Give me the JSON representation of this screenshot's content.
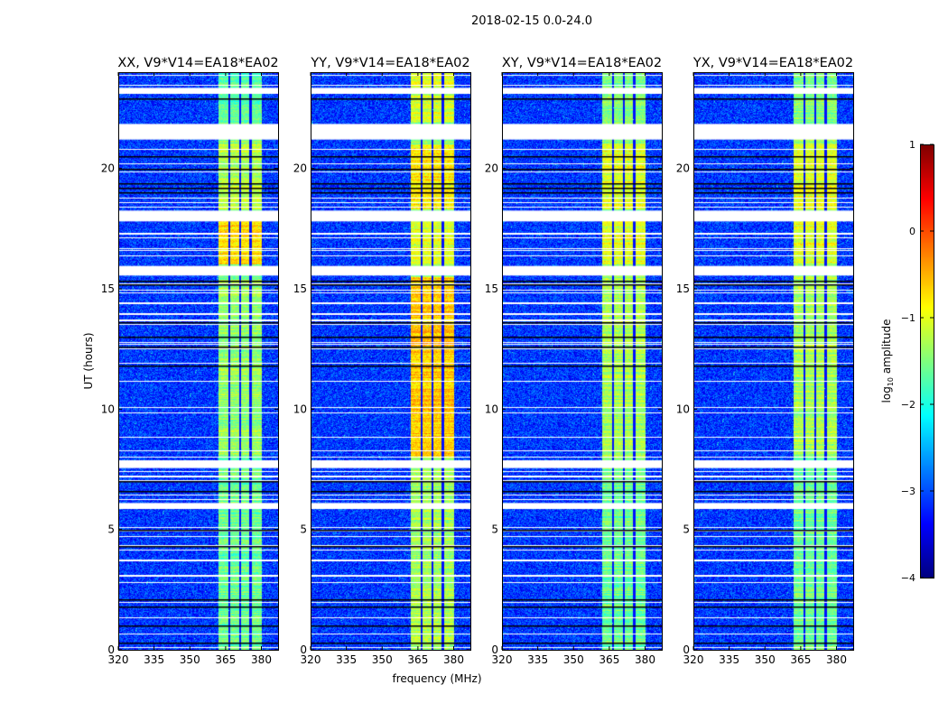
{
  "chart_data": {
    "type": "heatmap",
    "title": "2018-02-15 0.0-24.0",
    "xlabel": "frequency (MHz)",
    "ylabel": "UT (hours)",
    "xlim": [
      320,
      387
    ],
    "ylim": [
      0,
      24
    ],
    "xticks": [
      320,
      335,
      350,
      365,
      380
    ],
    "yticks": [
      0,
      5,
      10,
      15,
      20
    ],
    "colorbar": {
      "label": "log10 amplitude",
      "label_main": "log",
      "label_sub": "10",
      "label_rest": " amplitude",
      "range": [
        -4,
        1
      ],
      "ticks": [
        1,
        0,
        -1,
        -2,
        -3,
        -4
      ],
      "tick_labels": [
        "1",
        "0",
        "−1",
        "−2",
        "−3",
        "−4"
      ],
      "colormap": "jet"
    },
    "background_level": -3.1,
    "band_edges_mhz": [
      362,
      366.5,
      371,
      375.5,
      380
    ],
    "flagged_gaps_hours": [
      [
        23.1,
        23.35
      ],
      [
        21.2,
        21.85
      ],
      [
        17.8,
        18.25
      ],
      [
        15.55,
        15.95
      ],
      [
        7.55,
        7.85
      ],
      [
        5.85,
        6.1
      ]
    ],
    "dark_lines_hours": [
      0.3,
      1.0,
      1.8,
      2.1,
      4.3,
      5.0,
      6.6,
      7.0,
      11.8,
      12.6,
      13.0,
      13.6,
      15.2,
      15.35,
      19.0,
      19.2,
      19.4,
      20.0,
      20.5,
      22.9
    ],
    "panels": [
      {
        "title": "XX, V9*V14=EA18*EA02",
        "band_levels": [
          [
            0,
            8,
            -1.6
          ],
          [
            8,
            15.5,
            -1.4
          ],
          [
            16,
            18,
            -0.7
          ],
          [
            18.3,
            21,
            -1.2
          ],
          [
            21.9,
            24,
            -1.7
          ]
        ]
      },
      {
        "title": "YY, V9*V14=EA18*EA02",
        "band_levels": [
          [
            0,
            8,
            -1.3
          ],
          [
            8,
            15.5,
            -0.6
          ],
          [
            16,
            18,
            -1.0
          ],
          [
            18.3,
            21,
            -0.8
          ],
          [
            21.9,
            24,
            -1.1
          ]
        ]
      },
      {
        "title": "XY, V9*V14=EA18*EA02",
        "band_levels": [
          [
            0,
            8,
            -1.6
          ],
          [
            8,
            15.5,
            -1.3
          ],
          [
            16,
            18,
            -1.0
          ],
          [
            18.3,
            21,
            -1.0
          ],
          [
            21.9,
            24,
            -1.5
          ]
        ]
      },
      {
        "title": "YX, V9*V14=EA18*EA02",
        "band_levels": [
          [
            0,
            8,
            -1.6
          ],
          [
            8,
            15.5,
            -1.3
          ],
          [
            16,
            18,
            -1.0
          ],
          [
            18.3,
            21,
            -1.0
          ],
          [
            21.9,
            24,
            -1.5
          ]
        ]
      }
    ]
  }
}
